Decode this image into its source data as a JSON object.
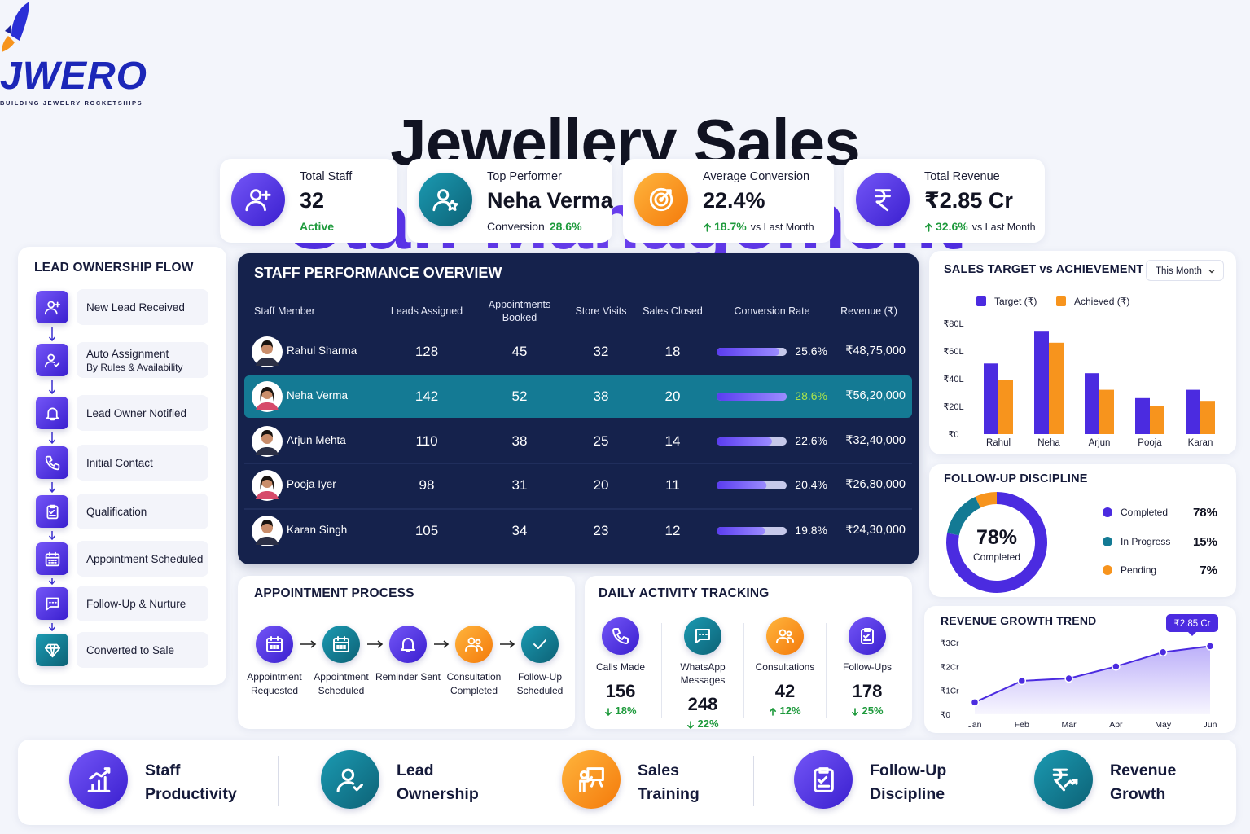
{
  "logo": {
    "name": "JWERO",
    "tagline": "BUILDING JEWELRY ROCKETSHIPS"
  },
  "header": {
    "title": "Jewellery Sales",
    "subtitle": "Staff Management"
  },
  "kpis": [
    {
      "label": "Total Staff",
      "value": "32",
      "note": "Active"
    },
    {
      "label": "Top Performer",
      "value": "Neha Verma",
      "note": "Conversion",
      "note_value": "28.6%"
    },
    {
      "label": "Average Conversion",
      "value": "22.4%",
      "change": "18.7%",
      "change_direction": "up",
      "note": "vs Last Month"
    },
    {
      "label": "Total Revenue",
      "value": "₹2.85 Cr",
      "change": "32.6%",
      "change_direction": "up",
      "note": "vs Last Month"
    }
  ],
  "lead_flow": {
    "title": "LEAD OWNERSHIP FLOW",
    "steps": [
      {
        "label": "New Lead Received"
      },
      {
        "label": "Auto Assignment",
        "sub": "By Rules & Availability"
      },
      {
        "label": "Lead Owner Notified"
      },
      {
        "label": "Initial Contact"
      },
      {
        "label": "Qualification"
      },
      {
        "label": "Appointment Scheduled"
      },
      {
        "label": "Follow-Up & Nurture"
      },
      {
        "label": "Converted to Sale"
      }
    ]
  },
  "staff_table": {
    "title": "STAFF PERFORMANCE OVERVIEW",
    "columns": [
      "Staff Member",
      "Leads Assigned",
      "Appointments Booked",
      "Store Visits",
      "Sales Closed",
      "Conversion Rate",
      "Revenue (₹)"
    ],
    "highlight_row": 1,
    "rows": [
      {
        "name": "Rahul Sharma",
        "leads": 128,
        "appointments": 45,
        "visits": 32,
        "sales": 18,
        "conversion": 25.6,
        "conversion_label": "25.6%",
        "revenue": "₹48,75,000"
      },
      {
        "name": "Neha Verma",
        "leads": 142,
        "appointments": 52,
        "visits": 38,
        "sales": 20,
        "conversion": 28.6,
        "conversion_label": "28.6%",
        "revenue": "₹56,20,000"
      },
      {
        "name": "Arjun Mehta",
        "leads": 110,
        "appointments": 38,
        "visits": 25,
        "sales": 14,
        "conversion": 22.6,
        "conversion_label": "22.6%",
        "revenue": "₹32,40,000"
      },
      {
        "name": "Pooja Iyer",
        "leads": 98,
        "appointments": 31,
        "visits": 20,
        "sales": 11,
        "conversion": 20.4,
        "conversion_label": "20.4%",
        "revenue": "₹26,80,000"
      },
      {
        "name": "Karan Singh",
        "leads": 105,
        "appointments": 34,
        "visits": 23,
        "sales": 12,
        "conversion": 19.8,
        "conversion_label": "19.8%",
        "revenue": "₹24,30,000"
      }
    ]
  },
  "chart_data": [
    {
      "type": "bar",
      "title": "SALES TARGET vs ACHIEVEMENT",
      "filter": "This Month",
      "categories": [
        "Rahul",
        "Neha",
        "Arjun",
        "Pooja",
        "Karan"
      ],
      "series": [
        {
          "name": "Target (₹)",
          "color": "#4b2be0",
          "values": [
            51,
            74,
            44,
            26,
            32
          ]
        },
        {
          "name": "Achieved (₹)",
          "color": "#f7941d",
          "values": [
            39,
            66,
            32,
            20,
            24
          ]
        }
      ],
      "ylim": [
        0,
        80
      ],
      "yticks": [
        {
          "value": 0,
          "label": "₹0"
        },
        {
          "value": 20,
          "label": "₹20L"
        },
        {
          "value": 40,
          "label": "₹40L"
        },
        {
          "value": 60,
          "label": "₹60L"
        },
        {
          "value": 80,
          "label": "₹80L"
        }
      ],
      "grid": false,
      "legend": "top"
    },
    {
      "type": "pie",
      "title": "FOLLOW-UP DISCIPLINE",
      "categories": [
        "Completed",
        "In Progress",
        "Pending"
      ],
      "values": [
        78,
        15,
        7
      ],
      "value_labels": [
        "78%",
        "15%",
        "7%"
      ],
      "colors": [
        "#4b2be0",
        "#137a94",
        "#f7941d"
      ],
      "legend": "right"
    },
    {
      "type": "line",
      "title": "REVENUE GROWTH TREND",
      "annotation": "₹2.85 Cr",
      "categories": [
        "Jan",
        "Feb",
        "Mar",
        "Apr",
        "May",
        "Jun"
      ],
      "values": [
        0.5,
        1.4,
        1.5,
        2.0,
        2.6,
        2.85
      ],
      "color": "#4b2be0",
      "ylim": [
        0,
        3
      ],
      "yticks": [
        {
          "value": 0,
          "label": "₹0"
        },
        {
          "value": 1,
          "label": "₹1Cr"
        },
        {
          "value": 2,
          "label": "₹2Cr"
        },
        {
          "value": 3,
          "label": "₹3Cr"
        }
      ],
      "grid": false
    }
  ],
  "appointment_process": {
    "title": "APPOINTMENT PROCESS",
    "steps": [
      "Appointment Requested",
      "Appointment Scheduled",
      "Reminder Sent",
      "Consultation Completed",
      "Follow-Up Scheduled"
    ]
  },
  "daily_activity": {
    "title": "DAILY ACTIVITY TRACKING",
    "items": [
      {
        "label": "Calls Made",
        "value": 156,
        "change": "18%",
        "trend": "down"
      },
      {
        "label": "WhatsApp Messages",
        "value": 248,
        "change": "22%",
        "trend": "down"
      },
      {
        "label": "Consultations",
        "value": 42,
        "change": "12%",
        "trend": "up"
      },
      {
        "label": "Follow-Ups",
        "value": 178,
        "change": "25%",
        "trend": "down"
      }
    ]
  },
  "footer": {
    "items": [
      "Staff Productivity",
      "Lead Ownership",
      "Sales Training",
      "Follow-Up Discipline",
      "Revenue Growth"
    ]
  }
}
